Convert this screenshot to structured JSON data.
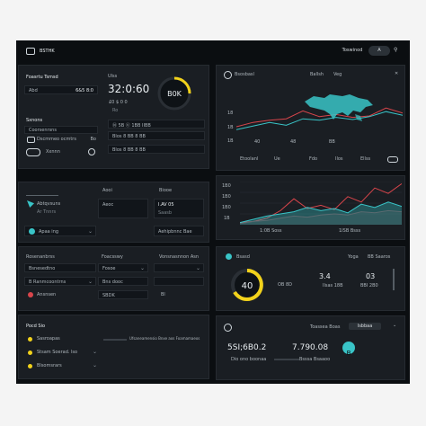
{
  "header": {
    "title": "BSTHK",
    "user_label": "Toswinod",
    "aa_label": "A"
  },
  "panel_a": {
    "title": "Foasrtu Tsmsd",
    "row1_label": "Abd",
    "row1_value": "6&5 8:0",
    "right_label": "Ulss",
    "big_time": "32:0:60",
    "sub_value": "£0 $ 0 0",
    "sub_label": "Ro",
    "gauge_text": "B0K",
    "list_title": "Sxnons",
    "list_rows": [
      {
        "label": "Coorsenrsns",
        "value": ""
      },
      {
        "label": "Dscmmeo ocmtrs",
        "value": "Bo"
      },
      {
        "label": "Xxnnn",
        "value": ""
      }
    ],
    "right_rows": [
      {
        "label": "Ⓝ 5B Ⓥ 1BB IIBB",
        "value": ""
      },
      {
        "label": "Blos 8 BB 8 BB",
        "value": "5"
      },
      {
        "label": "Blos 8 BB 8 BB",
        "value": ""
      }
    ]
  },
  "panel_b": {
    "left_title": "Aooi",
    "right_title": "Biooe",
    "items": [
      {
        "label": "Abtqvsuns",
        "sub": "Ar Tnnrs",
        "right": "Saasb",
        "right_value": ""
      },
      {
        "label": "Apaa ing",
        "sub": "",
        "right": "Aehipbnnc Bae",
        "right_value": ""
      }
    ],
    "mid_label": "Aeoc",
    "mid_value": "I.AV 05"
  },
  "panel_c": {
    "title": "Rosenanbrss",
    "mid_title": "Foacsswy",
    "right_title": "Vonsnasnnon Asn",
    "rows": [
      {
        "label": "Bsnesedtno",
        "mid": "Fosoe",
        "right": ""
      },
      {
        "label": "B Ranmcoontrns",
        "mid": "Bns dooc",
        "right": ""
      },
      {
        "label": "Ansnsen",
        "mid": "SBDK",
        "right": "Bl"
      }
    ]
  },
  "panel_d": {
    "title": "Pocd Sio",
    "rows": [
      {
        "label": "Sasroapas",
        "value": "Ufsaneamensio Bnxe aos Foamamaeos"
      },
      {
        "label": "Stsam Soerad. lso",
        "value": ""
      },
      {
        "label": "Blsomsrars",
        "value": ""
      }
    ]
  },
  "map_panel": {
    "title": "Bsosbasl",
    "top_items": [
      "Ballsh",
      "Veg"
    ],
    "y_labels": [
      "18",
      "1B",
      "1B"
    ],
    "x_labels": [
      "40",
      "48",
      "BB"
    ],
    "legend": [
      "Etoolanl",
      "Ue",
      "Fdo",
      "Ilos",
      "Ellss"
    ]
  },
  "line_panel": {
    "y_labels": [
      "1B0",
      "1B0",
      "1B0",
      "1B"
    ],
    "bottom_left": "1:0B Soss",
    "bottom_right": "1ISB Bsss",
    "legend": [
      "1B Bdc",
      "1B",
      "1B",
      "1B"
    ]
  },
  "gauge_panel": {
    "title": "Bsasd",
    "gauge_value": "40",
    "mid_label": "OB 8D",
    "val1": "3.4",
    "val1_sub": "Ilsas 18B",
    "val2": "03",
    "val2_sub": "BBI 2B0",
    "right_head": "Yoga",
    "right_head2": "BB Saaros",
    "top_right": "BIS"
  },
  "stats_panel": {
    "top_label": "Toassea Boas",
    "top_right": "Isbbaa",
    "big1": "5SI;6B0.2",
    "big1_sub": "Dio ono boonaa",
    "big2": "7.790.08",
    "big2_sub": "Bsssa Bsaaoo",
    "badge": "B"
  },
  "chart_data": [
    {
      "type": "line",
      "title": "",
      "xlabel": "",
      "ylabel": "",
      "x": [
        0,
        1,
        2,
        3,
        4,
        5,
        6,
        7,
        8,
        9,
        10
      ],
      "series": [
        {
          "values": [
            2,
            2.6,
            2.9,
            3.1,
            4.2,
            3.4,
            3.7,
            3.3,
            3.5,
            4.6,
            3.9
          ]
        },
        {
          "values": [
            1.6,
            2.1,
            2.6,
            2.2,
            3.1,
            2.9,
            3.3,
            3.0,
            3.4,
            4.1,
            3.6
          ]
        }
      ],
      "ylim": [
        0,
        5
      ]
    },
    {
      "type": "area",
      "title": "",
      "xlabel": "",
      "ylabel": "",
      "x": [
        0,
        1,
        2,
        3,
        4,
        5,
        6,
        7,
        8,
        9,
        10,
        11,
        12
      ],
      "series": [
        {
          "values": [
            0.2,
            0.3,
            0.6,
            1.3,
            2.4,
            1.5,
            1.8,
            1.4,
            2.6,
            2.1,
            3.4,
            2.9,
            3.8
          ]
        },
        {
          "values": [
            0.2,
            0.5,
            0.8,
            1.0,
            1.2,
            1.6,
            1.3,
            1.5,
            1.1,
            1.9,
            1.6,
            2.1,
            1.7
          ]
        },
        {
          "values": [
            0.1,
            0.3,
            0.4,
            0.6,
            0.8,
            0.7,
            0.9,
            1.0,
            0.9,
            1.2,
            1.1,
            1.3,
            1.2
          ]
        }
      ],
      "ylim": [
        0,
        4
      ]
    }
  ],
  "colors": {
    "teal": "#39c4c7",
    "red": "#d8454b",
    "yellow": "#f2d21b",
    "bg": "#0b0e11",
    "panel": "#1a1e23"
  }
}
